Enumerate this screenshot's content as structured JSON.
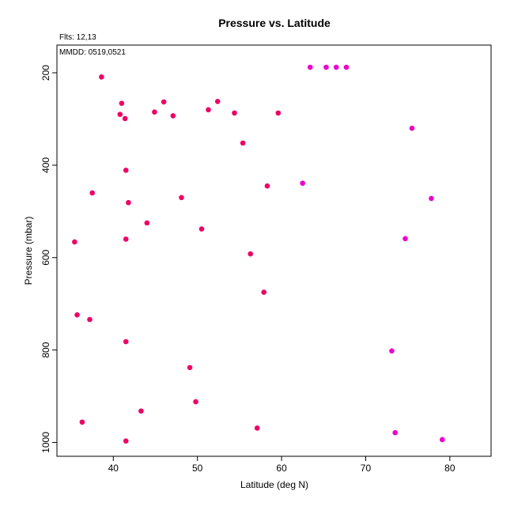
{
  "chart_data": {
    "type": "scatter",
    "title": "Pressure vs. Latitude",
    "xlabel": "Latitude (deg N)",
    "ylabel": "Pressure (mbar)",
    "notes": [
      "Flts: 12,13",
      "MMDD: 0519,0521"
    ],
    "xlim": [
      33.3,
      84.9
    ],
    "ylim": [
      1030,
      140
    ],
    "x_reversed": false,
    "y_reversed": true,
    "xticks": [
      40,
      50,
      60,
      70,
      80
    ],
    "yticks": [
      200,
      400,
      600,
      800,
      1000
    ],
    "grid": false,
    "legend": "none",
    "colors": {
      "red": "#ee0066",
      "magenta": "#ee00cc"
    },
    "series": [
      {
        "color_key": "red",
        "points": [
          [
            38.6,
            209
          ],
          [
            41.0,
            266
          ],
          [
            40.8,
            290
          ],
          [
            41.4,
            299
          ],
          [
            44.9,
            285
          ],
          [
            46.0,
            263
          ],
          [
            47.1,
            293
          ],
          [
            51.3,
            280
          ],
          [
            52.4,
            262
          ],
          [
            54.4,
            287
          ],
          [
            59.6,
            287
          ],
          [
            55.4,
            352
          ],
          [
            41.5,
            411
          ],
          [
            37.5,
            460
          ],
          [
            41.8,
            481
          ],
          [
            48.1,
            470
          ],
          [
            58.3,
            445
          ],
          [
            44.0,
            525
          ],
          [
            50.5,
            538
          ],
          [
            35.4,
            566
          ],
          [
            41.5,
            560
          ],
          [
            56.3,
            592
          ],
          [
            57.9,
            675
          ],
          [
            35.7,
            724
          ],
          [
            37.2,
            734
          ],
          [
            41.5,
            782
          ],
          [
            49.1,
            838
          ],
          [
            43.3,
            932
          ],
          [
            49.8,
            912
          ],
          [
            36.3,
            956
          ],
          [
            57.1,
            969
          ],
          [
            41.5,
            997
          ]
        ]
      },
      {
        "color_key": "magenta",
        "points": [
          [
            63.4,
            188
          ],
          [
            65.3,
            188
          ],
          [
            66.5,
            188
          ],
          [
            67.7,
            188
          ],
          [
            75.5,
            320
          ],
          [
            62.5,
            439
          ],
          [
            77.8,
            472
          ],
          [
            74.7,
            559
          ],
          [
            73.1,
            802
          ],
          [
            73.5,
            979
          ],
          [
            79.1,
            994
          ]
        ]
      }
    ]
  }
}
